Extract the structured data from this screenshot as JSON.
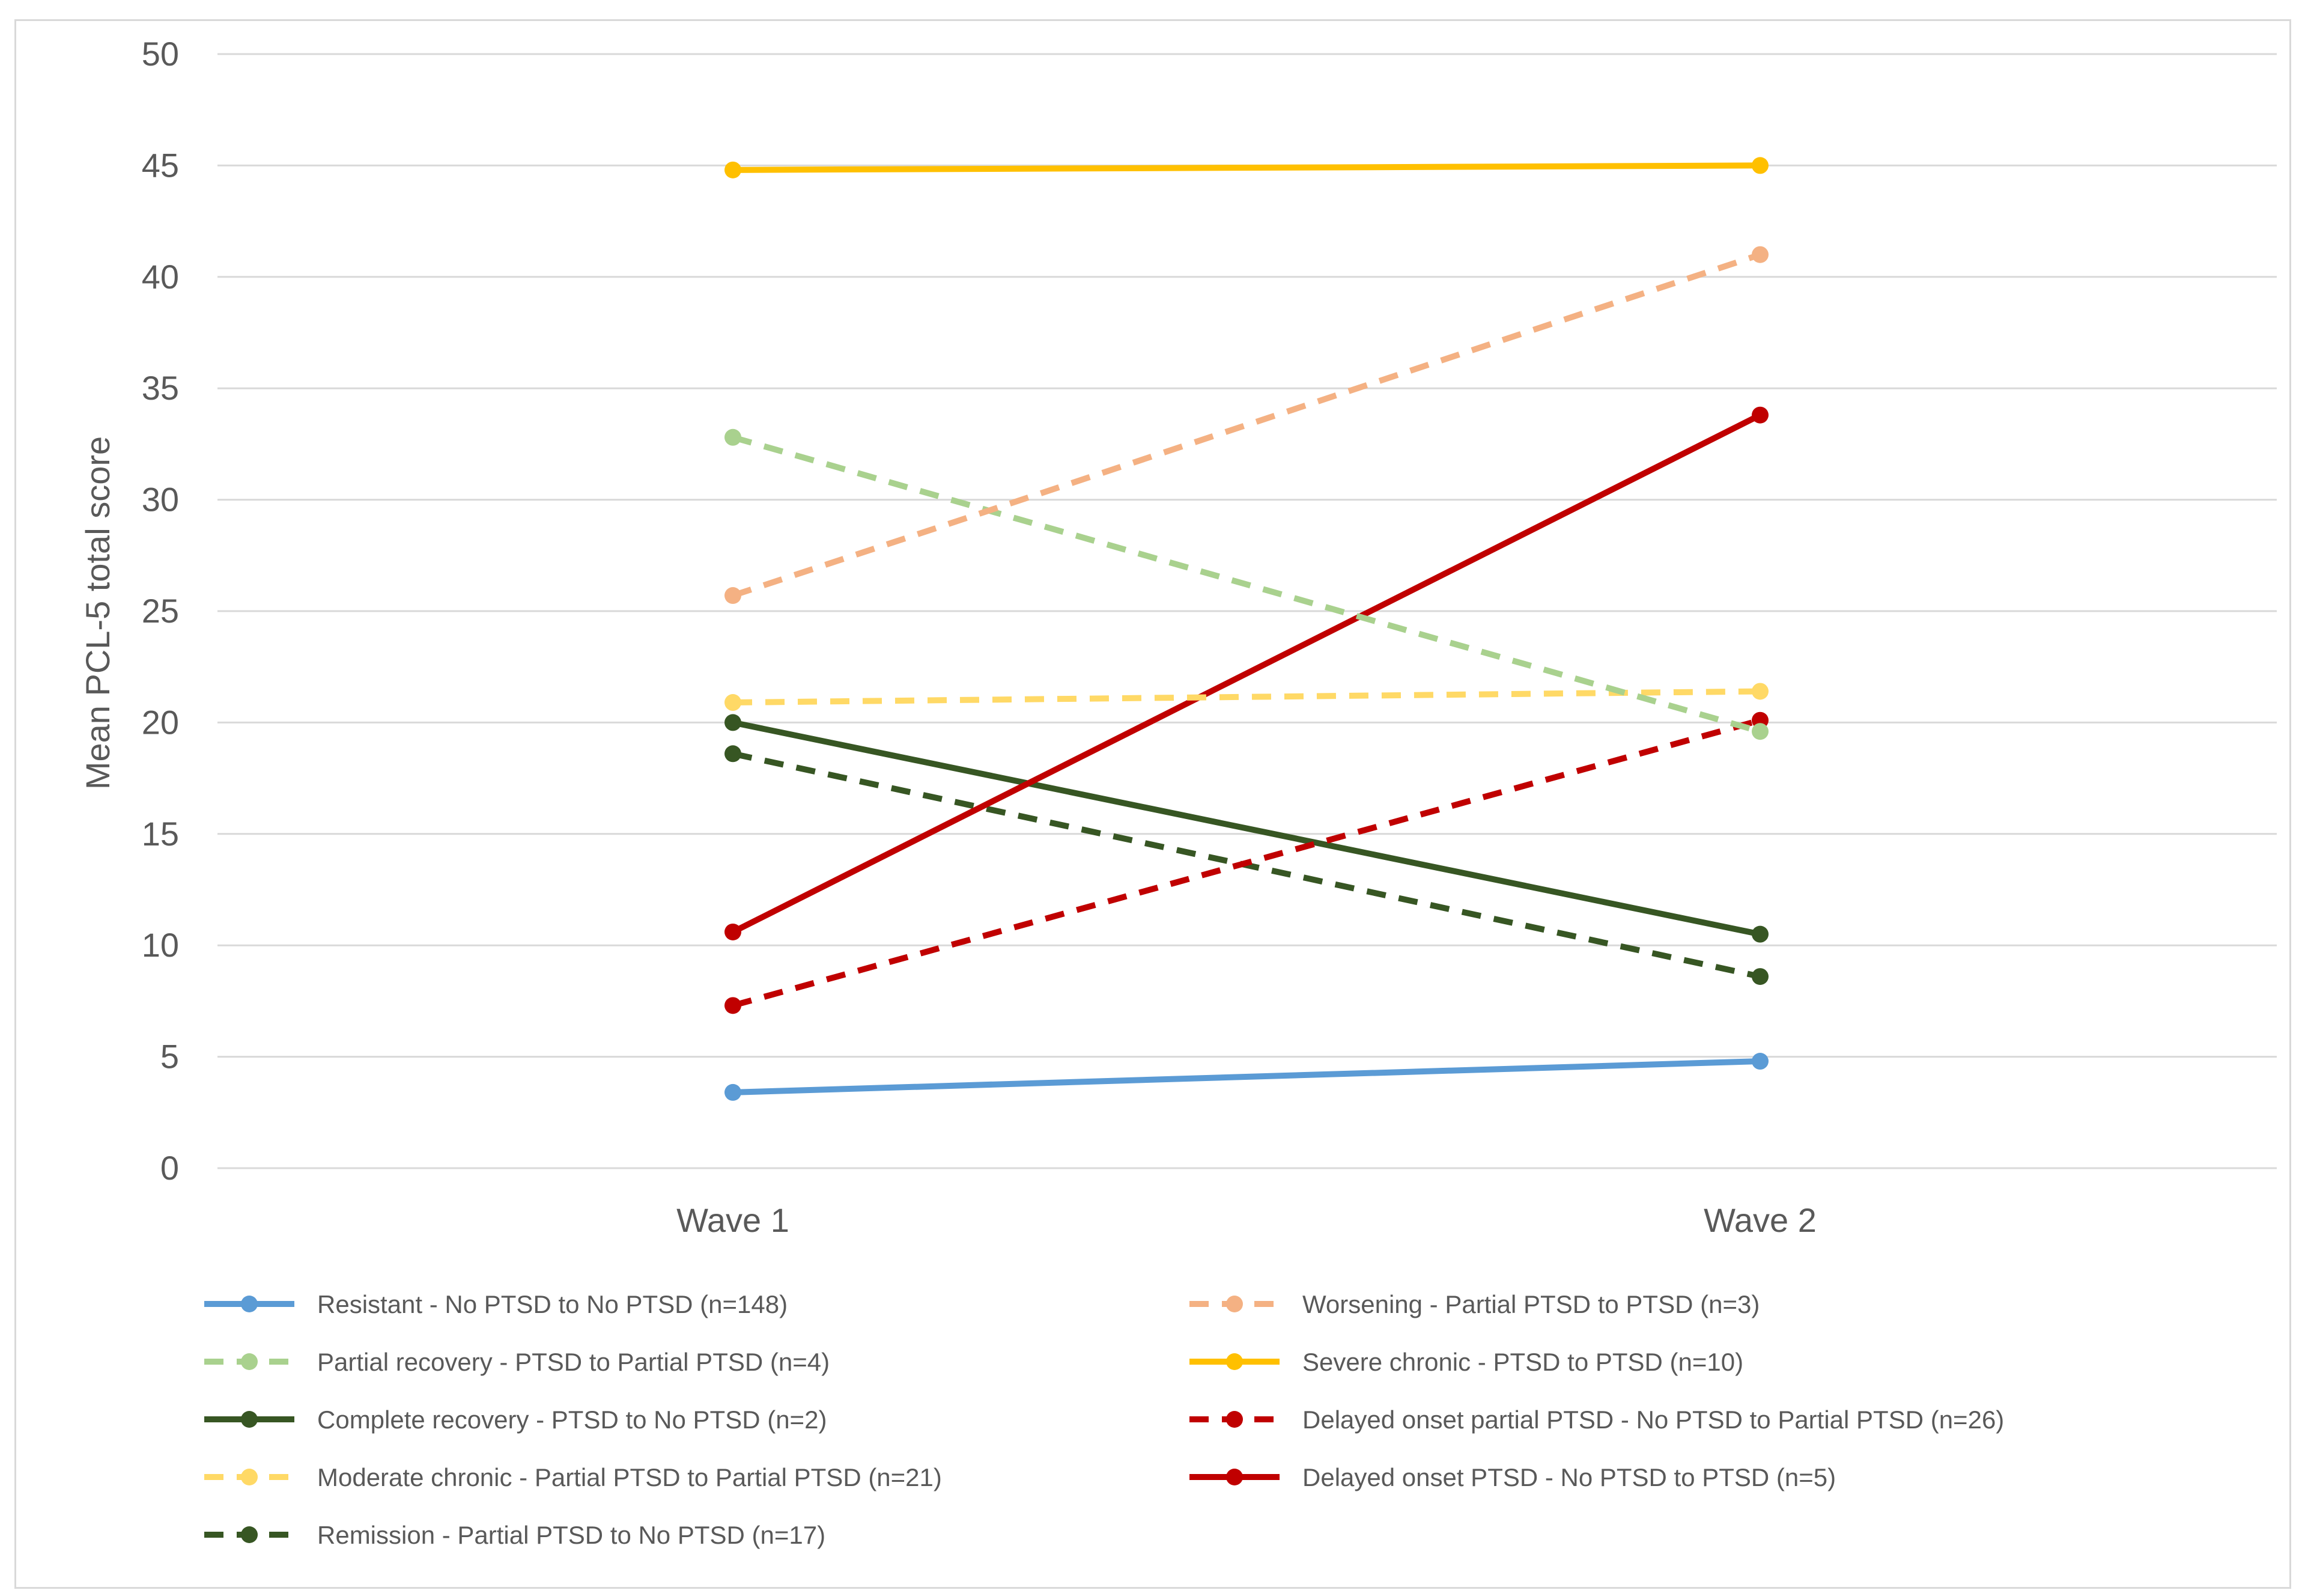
{
  "chart_data": {
    "type": "line",
    "title": "",
    "xlabel": "",
    "ylabel": "Mean PCL-5 total score",
    "categories": [
      "Wave 1",
      "Wave 2"
    ],
    "ylim": [
      0,
      50
    ],
    "yticks": [
      0,
      5,
      10,
      15,
      20,
      25,
      30,
      35,
      40,
      45,
      50
    ],
    "grid": true,
    "legend_position": "bottom",
    "series": [
      {
        "name": "Resistant - No PTSD to No PTSD (n=148)",
        "values": [
          3.4,
          4.8
        ],
        "color": "#5b9bd5",
        "dashed": false
      },
      {
        "name": "Partial recovery - PTSD to Partial PTSD (n=4)",
        "values": [
          32.8,
          19.6
        ],
        "color": "#a9d18e",
        "dashed": true
      },
      {
        "name": "Complete recovery - PTSD to No PTSD (n=2)",
        "values": [
          20.0,
          10.5
        ],
        "color": "#375623",
        "dashed": false
      },
      {
        "name": "Moderate chronic  - Partial PTSD to Partial PTSD (n=21)",
        "values": [
          20.9,
          21.4
        ],
        "color": "#ffd966",
        "dashed": true
      },
      {
        "name": "Remission - Partial PTSD to No PTSD (n=17)",
        "values": [
          18.6,
          8.6
        ],
        "color": "#375623",
        "dashed": true
      },
      {
        "name": "Worsening - Partial PTSD to PTSD (n=3)",
        "values": [
          25.7,
          41.0
        ],
        "color": "#f4b183",
        "dashed": true
      },
      {
        "name": "Severe chronic - PTSD to PTSD (n=10)",
        "values": [
          44.8,
          45.0
        ],
        "color": "#ffc000",
        "dashed": false
      },
      {
        "name": "Delayed onset partial PTSD - No PTSD to Partial PTSD (n=26)",
        "values": [
          7.3,
          20.1
        ],
        "color": "#c00000",
        "dashed": true
      },
      {
        "name": "Delayed onset PTSD - No PTSD to PTSD (n=5)",
        "values": [
          10.6,
          33.8
        ],
        "color": "#c00000",
        "dashed": false
      }
    ]
  }
}
